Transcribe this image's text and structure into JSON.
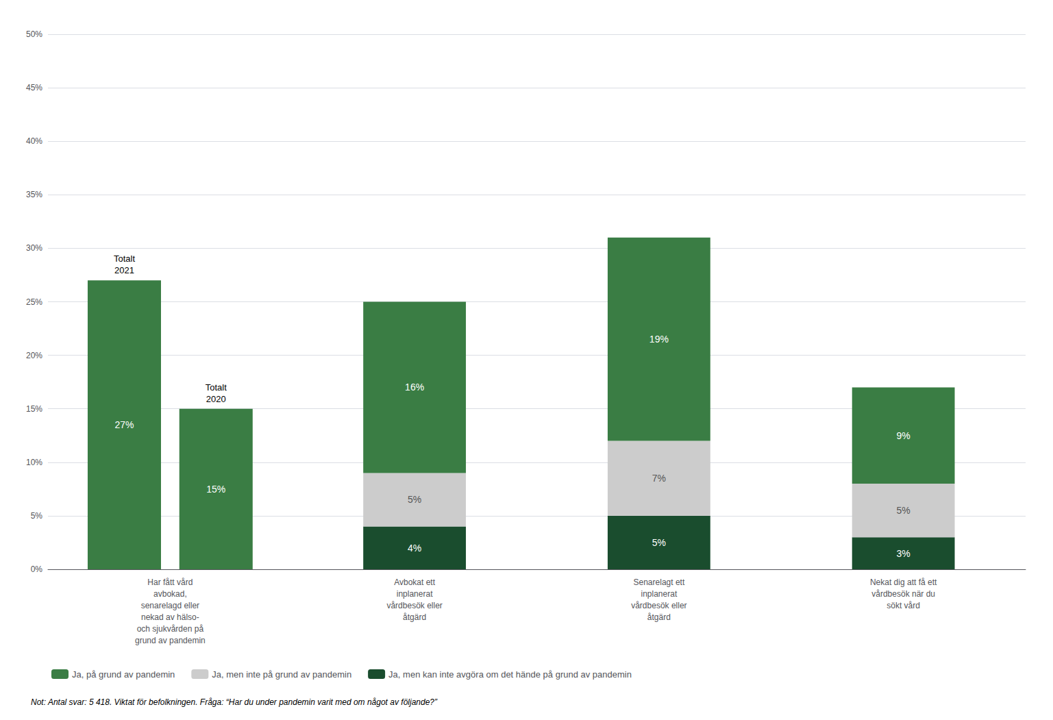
{
  "chart_data": {
    "type": "bar",
    "categories": [
      "Har fått vård\navbokad,\nsenarelagd eller\nnekad av hälso-\noch sjukvården på\ngrund av pandemin",
      "Avbokat ett\ninplanerat\nvårdbesök eller\nåtgärd",
      "Senarelagt ett\ninplanerat\nvårdbesök eller\nåtgärd",
      "Nekat dig att få ett\nvårdbesök när du\nsökt vård"
    ],
    "series": [
      {
        "name": "Totalt\n2021",
        "color": "#3a7d44",
        "stacked": false,
        "values": [
          27,
          null,
          null,
          null
        ],
        "value_labels": [
          "27%",
          null,
          null,
          null
        ]
      },
      {
        "name": "Totalt\n2020",
        "color": "#3a7d44",
        "stacked": false,
        "values": [
          15,
          null,
          null,
          null
        ],
        "value_labels": [
          "15%",
          null,
          null,
          null
        ]
      },
      {
        "name": "Ja, men kan inte avgöra om det hände på grund av pandemin",
        "color": "#1a4d2e",
        "stacked": true,
        "values": [
          null,
          4,
          5,
          3
        ],
        "value_labels": [
          null,
          "4%",
          "5%",
          "3%"
        ]
      },
      {
        "name": "Ja, men inte på grund av pandemin",
        "color": "#cccccc",
        "stacked": true,
        "values": [
          null,
          5,
          7,
          5
        ],
        "value_labels": [
          null,
          "5%",
          "7%",
          "5%"
        ]
      },
      {
        "name": "Ja, på grund av pandemin",
        "color": "#3a7d44",
        "stacked": true,
        "values": [
          null,
          16,
          19,
          9
        ],
        "value_labels": [
          null,
          "16%",
          "19%",
          "9%"
        ]
      }
    ],
    "ylim": [
      0,
      50
    ],
    "yticks": [
      {
        "value": 0,
        "label": "0%"
      },
      {
        "value": 5,
        "label": "5%"
      },
      {
        "value": 10,
        "label": "10%"
      },
      {
        "value": 15,
        "label": "15%"
      },
      {
        "value": 20,
        "label": "20%"
      },
      {
        "value": 25,
        "label": "25%"
      },
      {
        "value": 30,
        "label": "30%"
      },
      {
        "value": 35,
        "label": "35%"
      },
      {
        "value": 40,
        "label": "40%"
      },
      {
        "value": 45,
        "label": "45%"
      },
      {
        "value": 50,
        "label": "50%"
      }
    ],
    "grid": true,
    "legend": "bottom",
    "data_labels": true,
    "footnote": "Not: Antal svar: 5 418. Viktat för befolkningen. Fråga: “Har du under pandemin varit med om något av följande?”"
  }
}
